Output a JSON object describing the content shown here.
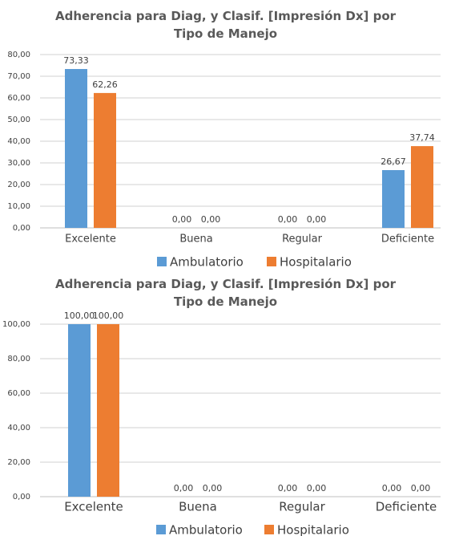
{
  "chart_data": [
    {
      "type": "bar",
      "title": "Adherencia para Diag, y Clasif. [Impresión Dx] por Tipo de Manejo",
      "categories": [
        "Excelente",
        "Buena",
        "Regular",
        "Deficiente"
      ],
      "series": [
        {
          "name": "Ambulatorio",
          "color": "#5b9bd5",
          "values": [
            73.33,
            0,
            0,
            26.67
          ],
          "value_labels": [
            "73,33",
            "0,00",
            "0,00",
            "26,67"
          ]
        },
        {
          "name": "Hospitalario",
          "color": "#ed7d31",
          "values": [
            62.26,
            0,
            0,
            37.74
          ],
          "value_labels": [
            "62,26",
            "0,00",
            "0,00",
            "37,74"
          ]
        }
      ],
      "ylim": [
        0,
        80
      ],
      "yticks": [
        {
          "value": 0,
          "label": "0,00"
        },
        {
          "value": 10,
          "label": "10,00"
        },
        {
          "value": 20,
          "label": "20,00"
        },
        {
          "value": 30,
          "label": "30,00"
        },
        {
          "value": 40,
          "label": "40,00"
        },
        {
          "value": 50,
          "label": "50,00"
        },
        {
          "value": 60,
          "label": "60,00"
        },
        {
          "value": 70,
          "label": "70,00"
        },
        {
          "value": 80,
          "label": "80,00"
        }
      ],
      "grid": true,
      "legend": "bottom"
    },
    {
      "type": "bar",
      "title": "Adherencia para Diag, y Clasif. [Impresión Dx] por Tipo de Manejo",
      "categories": [
        "Excelente",
        "Buena",
        "Regular",
        "Deficiente"
      ],
      "series": [
        {
          "name": "Ambulatorio",
          "color": "#5b9bd5",
          "values": [
            100,
            0,
            0,
            0
          ],
          "value_labels": [
            "100,00",
            "0,00",
            "0,00",
            "0,00"
          ]
        },
        {
          "name": "Hospitalario",
          "color": "#ed7d31",
          "values": [
            100,
            0,
            0,
            0
          ],
          "value_labels": [
            "100,00",
            "0,00",
            "0,00",
            "0,00"
          ]
        }
      ],
      "ylim": [
        0,
        100
      ],
      "yticks": [
        {
          "value": 0,
          "label": "0,00"
        },
        {
          "value": 20,
          "label": "20,00"
        },
        {
          "value": 40,
          "label": "40,00"
        },
        {
          "value": 60,
          "label": "60,00"
        },
        {
          "value": 80,
          "label": "80,00"
        },
        {
          "value": 100,
          "label": "100,00"
        }
      ],
      "grid": true,
      "legend": "bottom"
    }
  ]
}
